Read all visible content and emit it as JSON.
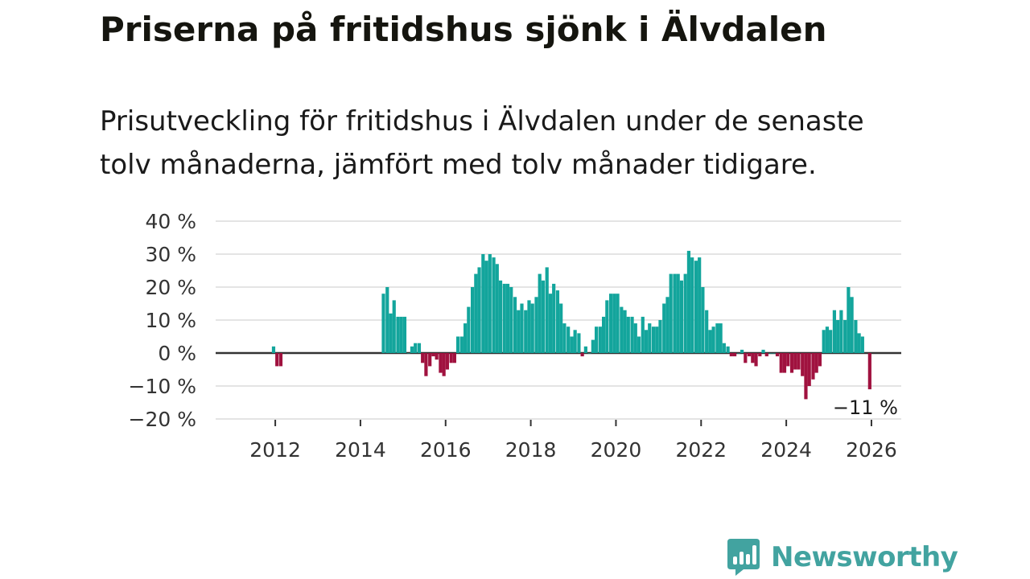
{
  "title": "Priserna på fritidshus sjönk i Älvdalen",
  "subtitle": "Prisutveckling för fritidshus i Älvdalen under de senaste tolv månaderna, jämfört med tolv månader tidigare.",
  "brand": {
    "name": "Newsworthy",
    "color": "#42a3a0"
  },
  "chart_data": {
    "type": "bar",
    "title": "Priserna på fritidshus sjönk i Älvdalen",
    "xlabel": "",
    "ylabel": "",
    "y_tick_labels": [
      "40 %",
      "30 %",
      "20 %",
      "10 %",
      "0 %",
      "−10 %",
      "−20 %"
    ],
    "y_ticks": [
      40,
      30,
      20,
      10,
      0,
      -10,
      -20
    ],
    "ylim": [
      -20,
      40
    ],
    "x_tick_labels": [
      "2012",
      "2014",
      "2016",
      "2018",
      "2020",
      "2022",
      "2024",
      "2026"
    ],
    "x_ticks": [
      2012,
      2014,
      2016,
      2018,
      2020,
      2022,
      2024,
      2026
    ],
    "xlim": [
      2010.6,
      2026.7
    ],
    "positive_color": "#13a59c",
    "negative_color": "#a0123f",
    "grid": true,
    "last_value_label": "−11 %",
    "series": [
      {
        "name": "Prisutveckling",
        "points": [
          [
            2011.96,
            2
          ],
          [
            2012.04,
            -4
          ],
          [
            2012.13,
            -4
          ],
          [
            2014.54,
            18
          ],
          [
            2014.63,
            20
          ],
          [
            2014.71,
            12
          ],
          [
            2014.79,
            16
          ],
          [
            2014.88,
            11
          ],
          [
            2014.96,
            11
          ],
          [
            2015.04,
            11
          ],
          [
            2015.13,
            0
          ],
          [
            2015.21,
            2
          ],
          [
            2015.29,
            3
          ],
          [
            2015.38,
            3
          ],
          [
            2015.46,
            -3
          ],
          [
            2015.54,
            -7
          ],
          [
            2015.63,
            -4
          ],
          [
            2015.71,
            -1
          ],
          [
            2015.79,
            -2
          ],
          [
            2015.88,
            -6
          ],
          [
            2015.96,
            -7
          ],
          [
            2016.04,
            -5
          ],
          [
            2016.13,
            -3
          ],
          [
            2016.21,
            -3
          ],
          [
            2016.29,
            5
          ],
          [
            2016.38,
            5
          ],
          [
            2016.46,
            9
          ],
          [
            2016.54,
            14
          ],
          [
            2016.63,
            20
          ],
          [
            2016.71,
            24
          ],
          [
            2016.79,
            26
          ],
          [
            2016.88,
            30
          ],
          [
            2016.96,
            28
          ],
          [
            2017.04,
            30
          ],
          [
            2017.13,
            29
          ],
          [
            2017.21,
            27
          ],
          [
            2017.29,
            22
          ],
          [
            2017.38,
            21
          ],
          [
            2017.46,
            21
          ],
          [
            2017.54,
            20
          ],
          [
            2017.63,
            17
          ],
          [
            2017.71,
            13
          ],
          [
            2017.79,
            15
          ],
          [
            2017.88,
            13
          ],
          [
            2017.96,
            16
          ],
          [
            2018.04,
            15
          ],
          [
            2018.13,
            17
          ],
          [
            2018.21,
            24
          ],
          [
            2018.29,
            22
          ],
          [
            2018.38,
            26
          ],
          [
            2018.46,
            18
          ],
          [
            2018.54,
            21
          ],
          [
            2018.63,
            19
          ],
          [
            2018.71,
            15
          ],
          [
            2018.79,
            9
          ],
          [
            2018.88,
            8
          ],
          [
            2018.96,
            5
          ],
          [
            2019.04,
            7
          ],
          [
            2019.13,
            6
          ],
          [
            2019.21,
            -1
          ],
          [
            2019.29,
            2
          ],
          [
            2019.38,
            0
          ],
          [
            2019.46,
            4
          ],
          [
            2019.54,
            8
          ],
          [
            2019.63,
            8
          ],
          [
            2019.71,
            11
          ],
          [
            2019.79,
            16
          ],
          [
            2019.88,
            18
          ],
          [
            2019.96,
            18
          ],
          [
            2020.04,
            18
          ],
          [
            2020.13,
            14
          ],
          [
            2020.21,
            13
          ],
          [
            2020.29,
            11
          ],
          [
            2020.38,
            11
          ],
          [
            2020.46,
            9
          ],
          [
            2020.54,
            5
          ],
          [
            2020.63,
            11
          ],
          [
            2020.71,
            7
          ],
          [
            2020.79,
            9
          ],
          [
            2020.88,
            8
          ],
          [
            2020.96,
            8
          ],
          [
            2021.04,
            10
          ],
          [
            2021.13,
            15
          ],
          [
            2021.21,
            17
          ],
          [
            2021.29,
            24
          ],
          [
            2021.38,
            24
          ],
          [
            2021.46,
            24
          ],
          [
            2021.54,
            22
          ],
          [
            2021.63,
            24
          ],
          [
            2021.71,
            31
          ],
          [
            2021.79,
            29
          ],
          [
            2021.88,
            28
          ],
          [
            2021.96,
            29
          ],
          [
            2022.04,
            20
          ],
          [
            2022.13,
            13
          ],
          [
            2022.21,
            7
          ],
          [
            2022.29,
            8
          ],
          [
            2022.38,
            9
          ],
          [
            2022.46,
            9
          ],
          [
            2022.54,
            3
          ],
          [
            2022.63,
            2
          ],
          [
            2022.71,
            -1
          ],
          [
            2022.79,
            -1
          ],
          [
            2022.88,
            0
          ],
          [
            2022.96,
            1
          ],
          [
            2023.04,
            -3
          ],
          [
            2023.13,
            -1
          ],
          [
            2023.21,
            -3
          ],
          [
            2023.29,
            -4
          ],
          [
            2023.38,
            -1
          ],
          [
            2023.46,
            1
          ],
          [
            2023.54,
            -1
          ],
          [
            2023.63,
            0
          ],
          [
            2023.71,
            0
          ],
          [
            2023.79,
            -1
          ],
          [
            2023.88,
            -6
          ],
          [
            2023.96,
            -6
          ],
          [
            2024.04,
            -4
          ],
          [
            2024.13,
            -6
          ],
          [
            2024.21,
            -5
          ],
          [
            2024.29,
            -5
          ],
          [
            2024.38,
            -7
          ],
          [
            2024.46,
            -14
          ],
          [
            2024.54,
            -10
          ],
          [
            2024.63,
            -8
          ],
          [
            2024.71,
            -6
          ],
          [
            2024.79,
            -4
          ],
          [
            2024.88,
            7
          ],
          [
            2024.96,
            8
          ],
          [
            2025.04,
            7
          ],
          [
            2025.13,
            13
          ],
          [
            2025.21,
            10
          ],
          [
            2025.29,
            13
          ],
          [
            2025.38,
            10
          ],
          [
            2025.46,
            20
          ],
          [
            2025.54,
            17
          ],
          [
            2025.63,
            10
          ],
          [
            2025.71,
            6
          ],
          [
            2025.79,
            5
          ],
          [
            2025.96,
            -11
          ]
        ]
      }
    ]
  }
}
